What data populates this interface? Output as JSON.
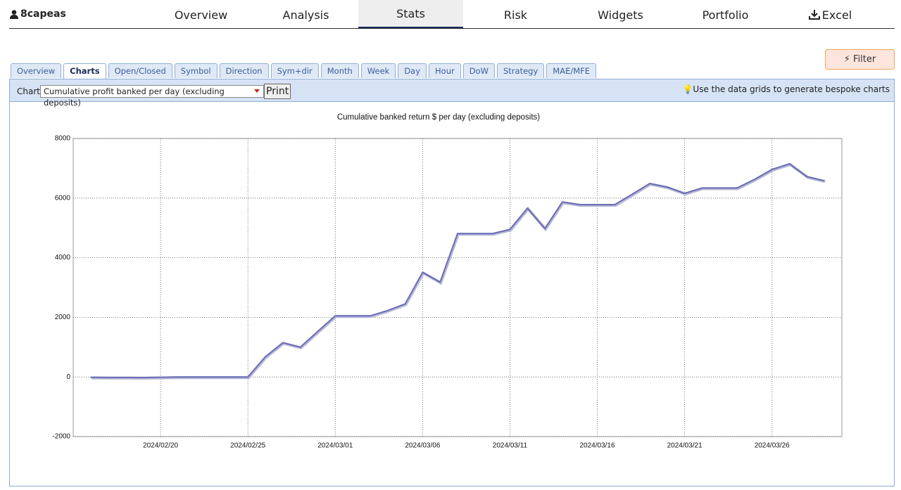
{
  "header": {
    "user": "8capeas",
    "nav": [
      "Overview",
      "Analysis",
      "Stats",
      "Risk",
      "Widgets",
      "Portfolio",
      "Excel"
    ],
    "active": 2
  },
  "tabs": {
    "items": [
      "Overview",
      "Charts",
      "Open/Closed",
      "Symbol",
      "Direction",
      "Sym+dir",
      "Month",
      "Week",
      "Day",
      "Hour",
      "DoW",
      "Strategy",
      "MAE/MFE"
    ],
    "active": 1
  },
  "filter": "Filter",
  "toolbar": {
    "label": "Chart:",
    "select": "Cumulative profit banked per day (excluding deposits)",
    "print": "Print",
    "hint": "Use the data grids to generate bespoke charts"
  },
  "chart_data": {
    "type": "line",
    "title": "Cumulative banked return $ per day (excluding deposits)",
    "x": [
      "2024/02/16",
      "2024/02/17",
      "2024/02/18",
      "2024/02/19",
      "2024/02/20",
      "2024/02/21",
      "2024/02/22",
      "2024/02/23",
      "2024/02/24",
      "2024/02/25",
      "2024/02/26",
      "2024/02/27",
      "2024/02/28",
      "2024/02/29",
      "2024/03/01",
      "2024/03/02",
      "2024/03/03",
      "2024/03/04",
      "2024/03/05",
      "2024/03/06",
      "2024/03/07",
      "2024/03/08",
      "2024/03/09",
      "2024/03/10",
      "2024/03/11",
      "2024/03/12",
      "2024/03/13",
      "2024/03/14",
      "2024/03/15",
      "2024/03/16",
      "2024/03/17",
      "2024/03/18",
      "2024/03/19",
      "2024/03/20",
      "2024/03/21",
      "2024/03/22",
      "2024/03/23",
      "2024/03/24",
      "2024/03/25",
      "2024/03/26",
      "2024/03/27",
      "2024/03/28",
      "2024/03/29"
    ],
    "series": [
      {
        "color": "#6b6bb5",
        "values": [
          -10,
          -15,
          -15,
          -20,
          -10,
          0,
          0,
          0,
          0,
          0,
          680,
          1150,
          1000,
          1530,
          2050,
          2050,
          2050,
          2230,
          2450,
          3510,
          3180,
          4810,
          4810,
          4810,
          4950,
          5660,
          4980,
          5870,
          5780,
          5780,
          5780,
          6130,
          6490,
          6370,
          6160,
          6340,
          6340,
          6340,
          6630,
          6960,
          7150,
          6720,
          6580
        ]
      }
    ],
    "xlim": [
      "2024/02/15",
      "2024/03/30"
    ],
    "xticks": [
      "2024/02/20",
      "2024/02/25",
      "2024/03/01",
      "2024/03/06",
      "2024/03/11",
      "2024/03/16",
      "2024/03/21",
      "2024/03/26"
    ],
    "ylim": [
      -2000,
      8000
    ],
    "yticks": [
      -2000,
      0,
      2000,
      4000,
      6000,
      8000
    ],
    "grid": true
  }
}
